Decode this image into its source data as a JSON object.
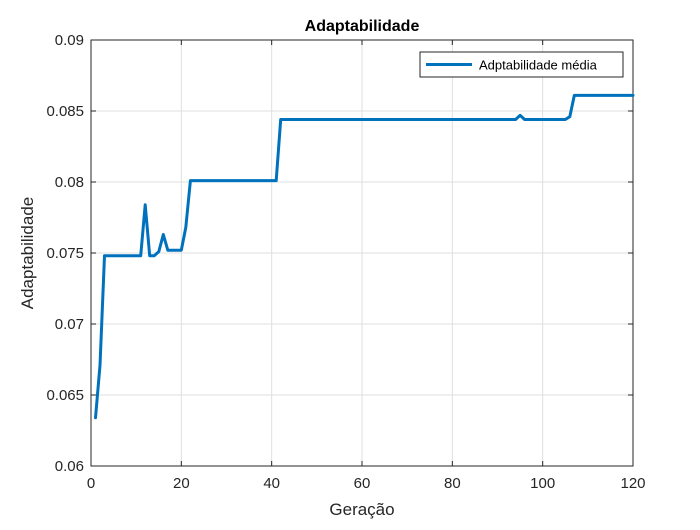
{
  "chart_data": {
    "type": "line",
    "title": "Adaptabilidade",
    "xlabel": "Geração",
    "ylabel": "Adaptabilidade",
    "xlim": [
      0,
      120
    ],
    "ylim": [
      0.06,
      0.09
    ],
    "x_ticks": [
      0,
      20,
      40,
      60,
      80,
      100,
      120
    ],
    "x_tick_labels": [
      "0",
      "20",
      "40",
      "60",
      "80",
      "100",
      "120"
    ],
    "y_ticks": [
      0.06,
      0.065,
      0.07,
      0.075,
      0.08,
      0.085,
      0.09
    ],
    "y_tick_labels": [
      "0.06",
      "0.065",
      "0.07",
      "0.075",
      "0.08",
      "0.085",
      "0.09"
    ],
    "grid": true,
    "legend_position": "top-right",
    "series": [
      {
        "name": "Adptabilidade média",
        "color": "#0072BD",
        "x": [
          1,
          2,
          3,
          4,
          5,
          6,
          7,
          8,
          9,
          10,
          11,
          12,
          13,
          14,
          15,
          16,
          17,
          18,
          19,
          20,
          21,
          22,
          23,
          30,
          40,
          41,
          42,
          50,
          60,
          70,
          80,
          90,
          94,
          95,
          96,
          100,
          105,
          106,
          107,
          110,
          120
        ],
        "y": [
          0.0634,
          0.0671,
          0.0748,
          0.0748,
          0.0748,
          0.0748,
          0.0748,
          0.0748,
          0.0748,
          0.0748,
          0.0748,
          0.0784,
          0.0748,
          0.0748,
          0.0751,
          0.0763,
          0.0752,
          0.0752,
          0.0752,
          0.0752,
          0.0768,
          0.0801,
          0.0801,
          0.0801,
          0.0801,
          0.0801,
          0.0844,
          0.0844,
          0.0844,
          0.0844,
          0.0844,
          0.0844,
          0.0844,
          0.0847,
          0.0844,
          0.0844,
          0.0844,
          0.0846,
          0.0861,
          0.0861,
          0.0861
        ]
      }
    ]
  }
}
